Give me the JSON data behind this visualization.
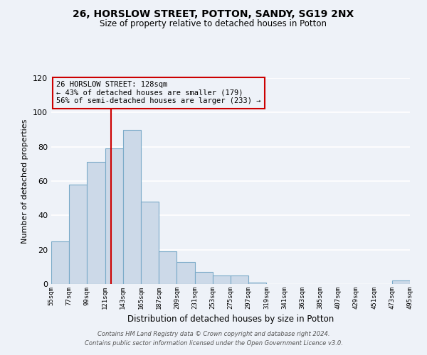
{
  "title": "26, HORSLOW STREET, POTTON, SANDY, SG19 2NX",
  "subtitle": "Size of property relative to detached houses in Potton",
  "xlabel": "Distribution of detached houses by size in Potton",
  "ylabel": "Number of detached properties",
  "bar_color": "#ccd9e8",
  "bar_edge_color": "#7aaac8",
  "bin_edges": [
    55,
    77,
    99,
    121,
    143,
    165,
    187,
    209,
    231,
    253,
    275,
    297,
    319,
    341,
    363,
    385,
    407,
    429,
    451,
    473,
    495
  ],
  "bar_heights": [
    25,
    58,
    71,
    79,
    90,
    48,
    19,
    13,
    7,
    5,
    5,
    1,
    0,
    0,
    0,
    0,
    0,
    0,
    0,
    2
  ],
  "tick_labels": [
    "55sqm",
    "77sqm",
    "99sqm",
    "121sqm",
    "143sqm",
    "165sqm",
    "187sqm",
    "209sqm",
    "231sqm",
    "253sqm",
    "275sqm",
    "297sqm",
    "319sqm",
    "341sqm",
    "363sqm",
    "385sqm",
    "407sqm",
    "429sqm",
    "451sqm",
    "473sqm",
    "495sqm"
  ],
  "ylim": [
    0,
    120
  ],
  "yticks": [
    0,
    20,
    40,
    60,
    80,
    100,
    120
  ],
  "vline_x": 128,
  "vline_color": "#cc0000",
  "annotation_title": "26 HORSLOW STREET: 128sqm",
  "annotation_line1": "← 43% of detached houses are smaller (179)",
  "annotation_line2": "56% of semi-detached houses are larger (233) →",
  "annotation_box_color": "#cc0000",
  "footer_line1": "Contains HM Land Registry data © Crown copyright and database right 2024.",
  "footer_line2": "Contains public sector information licensed under the Open Government Licence v3.0.",
  "background_color": "#eef2f8",
  "grid_color": "#ffffff"
}
